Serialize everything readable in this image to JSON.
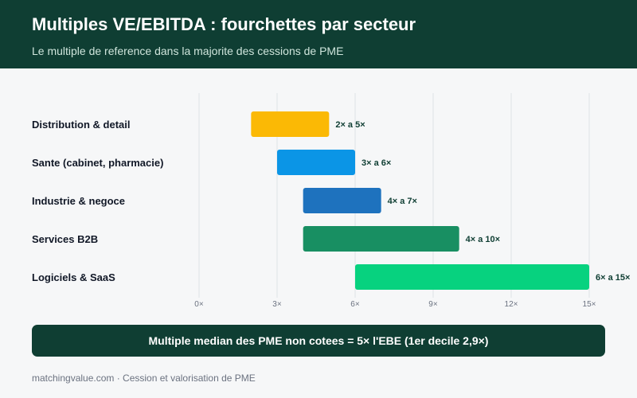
{
  "header": {
    "title": "Multiples VE/EBITDA : fourchettes par secteur",
    "subtitle": "Le multiple de reference dans la majorite des cessions de PME"
  },
  "chart_data": {
    "type": "bar",
    "orientation": "horizontal-range",
    "categories": [
      "Distribution & detail",
      "Sante (cabinet, pharmacie)",
      "Industrie & negoce",
      "Services B2B",
      "Logiciels & SaaS"
    ],
    "ranges": [
      {
        "low": 2,
        "high": 5,
        "label": "2× a 5×",
        "color": "#fbb905"
      },
      {
        "low": 3,
        "high": 6,
        "label": "3× a 6×",
        "color": "#0b95e6"
      },
      {
        "low": 4,
        "high": 7,
        "label": "4× a 7×",
        "color": "#1e72be"
      },
      {
        "low": 4,
        "high": 10,
        "label": "4× a 10×",
        "color": "#188f62"
      },
      {
        "low": 6,
        "high": 15,
        "label": "6× a 15×",
        "color": "#07d27f"
      }
    ],
    "x_ticks": [
      {
        "value": 0,
        "label": "0×"
      },
      {
        "value": 3,
        "label": "3×"
      },
      {
        "value": 6,
        "label": "6×"
      },
      {
        "value": 9,
        "label": "9×"
      },
      {
        "value": 12,
        "label": "12×"
      },
      {
        "value": 15,
        "label": "15×"
      }
    ],
    "xlim": [
      0,
      15
    ],
    "grid": "vertical",
    "colors": {
      "category_label": "#111827",
      "value_label": "#0f3e33",
      "tick_label": "#6b7280",
      "grid": "#dfe3e6"
    }
  },
  "banner": {
    "text": "Multiple median des PME non cotees = 5× l'EBE (1er decile 2,9×)"
  },
  "footer": {
    "text": "matchingvalue.com · Cession et valorisation de PME"
  }
}
